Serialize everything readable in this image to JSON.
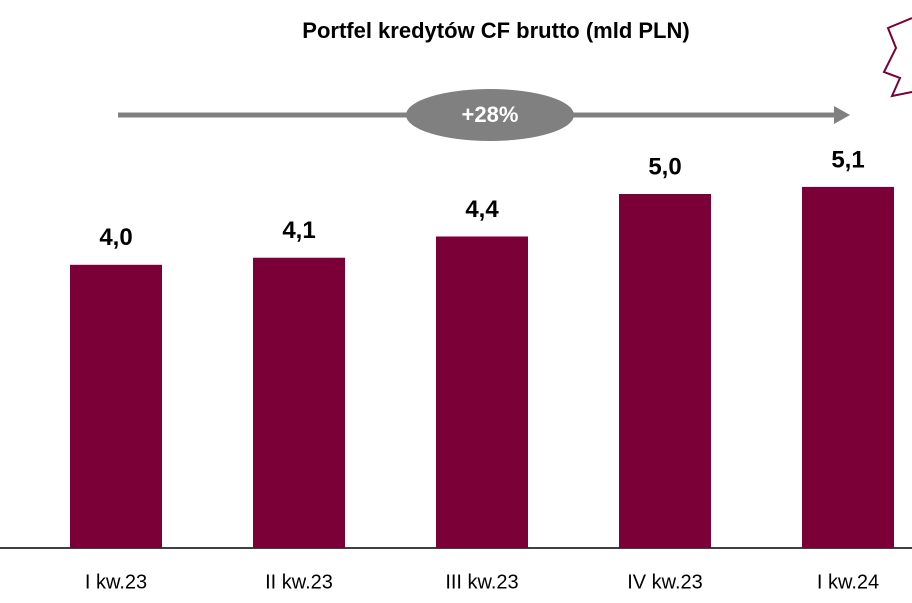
{
  "chart_data": {
    "type": "bar",
    "title": "Portfel kredytów CF brutto (mld PLN)",
    "categories": [
      "I kw.23",
      "II kw.23",
      "III kw.23",
      "IV kw.23",
      "I kw.24"
    ],
    "values": [
      4.0,
      4.1,
      4.4,
      5.0,
      5.1
    ],
    "value_labels": [
      "4,0",
      "4,1",
      "4,4",
      "5,0",
      "5,1"
    ],
    "color": "#7b0038",
    "annotation": "+28%"
  }
}
